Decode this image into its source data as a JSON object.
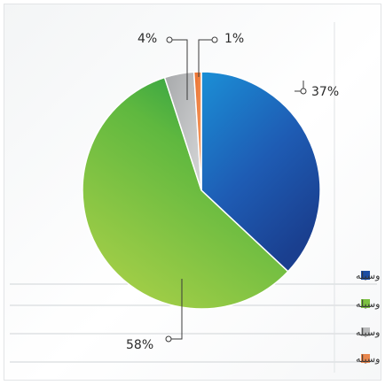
{
  "chart_data": {
    "type": "pie",
    "slices": [
      {
        "label": "بدون وسیله",
        "value": 37,
        "display": "37%",
        "color": "#1d4ea3"
      },
      {
        "label": "یک وسیله",
        "value": 58,
        "display": "58%",
        "color": "#7cc142"
      },
      {
        "label": "دو وسیله",
        "value": 4,
        "display": "4%",
        "color": "#b9babb"
      },
      {
        "label": "بیش از دو وسیله",
        "value": 1,
        "display": "1%",
        "color": "#e9874d"
      }
    ],
    "legend_position": "bottom-right"
  }
}
